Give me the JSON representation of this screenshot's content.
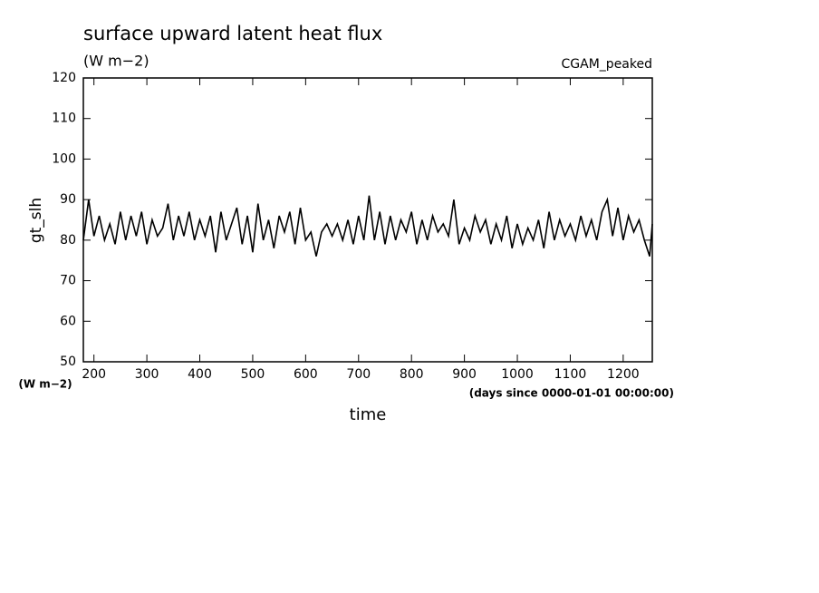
{
  "chart_data": {
    "type": "line",
    "title": "surface upward latent heat flux",
    "subtitle": "(W m−2)",
    "annotation": "CGAM_peaked",
    "y_label": "gt_slh",
    "y_units": "(W m−2)",
    "x_label": "time",
    "x_units": "(days since 0000-01-01 00:00:00)",
    "color": "#000000",
    "xlim": [
      180,
      1255
    ],
    "ylim": [
      50,
      120
    ],
    "xticks": [
      200,
      300,
      400,
      500,
      600,
      700,
      800,
      900,
      1000,
      1100,
      1200
    ],
    "yticks": [
      50,
      60,
      70,
      80,
      90,
      100,
      110,
      120
    ],
    "x": [
      180,
      190,
      200,
      210,
      220,
      230,
      240,
      250,
      260,
      270,
      280,
      290,
      300,
      310,
      320,
      330,
      340,
      350,
      360,
      370,
      380,
      390,
      400,
      410,
      420,
      430,
      440,
      450,
      460,
      470,
      480,
      490,
      500,
      510,
      520,
      530,
      540,
      550,
      560,
      570,
      580,
      590,
      600,
      610,
      620,
      630,
      640,
      650,
      660,
      670,
      680,
      690,
      700,
      710,
      720,
      730,
      740,
      750,
      760,
      770,
      780,
      790,
      800,
      810,
      820,
      830,
      840,
      850,
      860,
      870,
      880,
      890,
      900,
      910,
      920,
      930,
      940,
      950,
      960,
      970,
      980,
      990,
      1000,
      1010,
      1020,
      1030,
      1040,
      1050,
      1060,
      1070,
      1080,
      1090,
      1100,
      1110,
      1120,
      1130,
      1140,
      1150,
      1160,
      1170,
      1180,
      1190,
      1200,
      1210,
      1220,
      1230,
      1240,
      1250,
      1255
    ],
    "values": [
      80,
      90,
      81,
      86,
      80,
      84,
      79,
      87,
      80,
      86,
      81,
      87,
      79,
      85,
      81,
      83,
      89,
      80,
      86,
      81,
      87,
      80,
      85,
      81,
      86,
      77,
      87,
      80,
      84,
      88,
      79,
      86,
      77,
      89,
      80,
      85,
      78,
      86,
      82,
      87,
      79,
      88,
      80,
      82,
      76,
      82,
      84,
      81,
      84,
      80,
      85,
      79,
      86,
      80,
      91,
      80,
      87,
      79,
      86,
      80,
      85,
      82,
      87,
      79,
      85,
      80,
      86,
      82,
      84,
      81,
      90,
      79,
      83,
      80,
      86,
      82,
      85,
      79,
      84,
      80,
      86,
      78,
      84,
      79,
      83,
      80,
      85,
      78,
      87,
      80,
      85,
      81,
      84,
      80,
      86,
      81,
      85,
      80,
      87,
      90,
      81,
      88,
      80,
      86,
      82,
      85,
      80,
      76,
      84
    ]
  }
}
